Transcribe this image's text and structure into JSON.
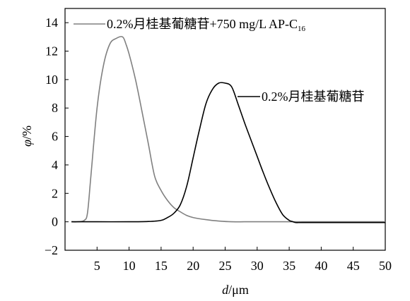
{
  "chart_data": {
    "type": "line",
    "xlabel": {
      "var": "d",
      "unit": "/μm"
    },
    "ylabel": {
      "var": "φ",
      "unit": "/%"
    },
    "xlim": [
      0,
      50
    ],
    "ylim": [
      -2,
      15
    ],
    "x_ticks": [
      5,
      10,
      15,
      20,
      25,
      30,
      35,
      40,
      45,
      50
    ],
    "y_ticks": [
      -2,
      0,
      2,
      4,
      6,
      8,
      10,
      12,
      14
    ],
    "grid": false,
    "series": [
      {
        "name": "0.2%月桂基葡糖苷+750 mg/L AP-C",
        "name_subscript": "16",
        "color": "#808080",
        "x": [
          1,
          2,
          3,
          3.5,
          4,
          5,
          6,
          7,
          8,
          9,
          9.5,
          10,
          11,
          12,
          13,
          14,
          15,
          16,
          17,
          18,
          19,
          20,
          22,
          24,
          26,
          28,
          30,
          35,
          40,
          45,
          50
        ],
        "y": [
          0,
          0,
          0.1,
          0.6,
          3,
          8,
          11,
          12.5,
          12.9,
          13,
          12.5,
          11.8,
          10,
          7.8,
          5.5,
          3.2,
          2.2,
          1.5,
          1,
          0.7,
          0.45,
          0.3,
          0.15,
          0.05,
          0,
          0,
          0,
          0,
          0,
          0,
          0
        ]
      },
      {
        "name": "0.2%月桂基葡糖苷",
        "color": "#000000",
        "x": [
          1,
          5,
          10,
          13,
          15,
          16,
          17,
          18,
          19,
          20,
          21,
          22,
          23,
          24,
          25,
          26,
          27,
          28,
          29,
          30,
          31,
          32,
          33,
          34,
          35,
          35.5,
          36,
          37,
          40,
          45,
          50
        ],
        "y": [
          0,
          0,
          0,
          0.02,
          0.1,
          0.3,
          0.6,
          1.2,
          2.5,
          4.5,
          6.5,
          8.3,
          9.3,
          9.75,
          9.75,
          9.5,
          8.3,
          7,
          5.8,
          4.6,
          3.4,
          2.3,
          1.3,
          0.5,
          0.1,
          0.02,
          -0.05,
          -0.05,
          -0.05,
          -0.05,
          -0.05
        ]
      }
    ]
  }
}
